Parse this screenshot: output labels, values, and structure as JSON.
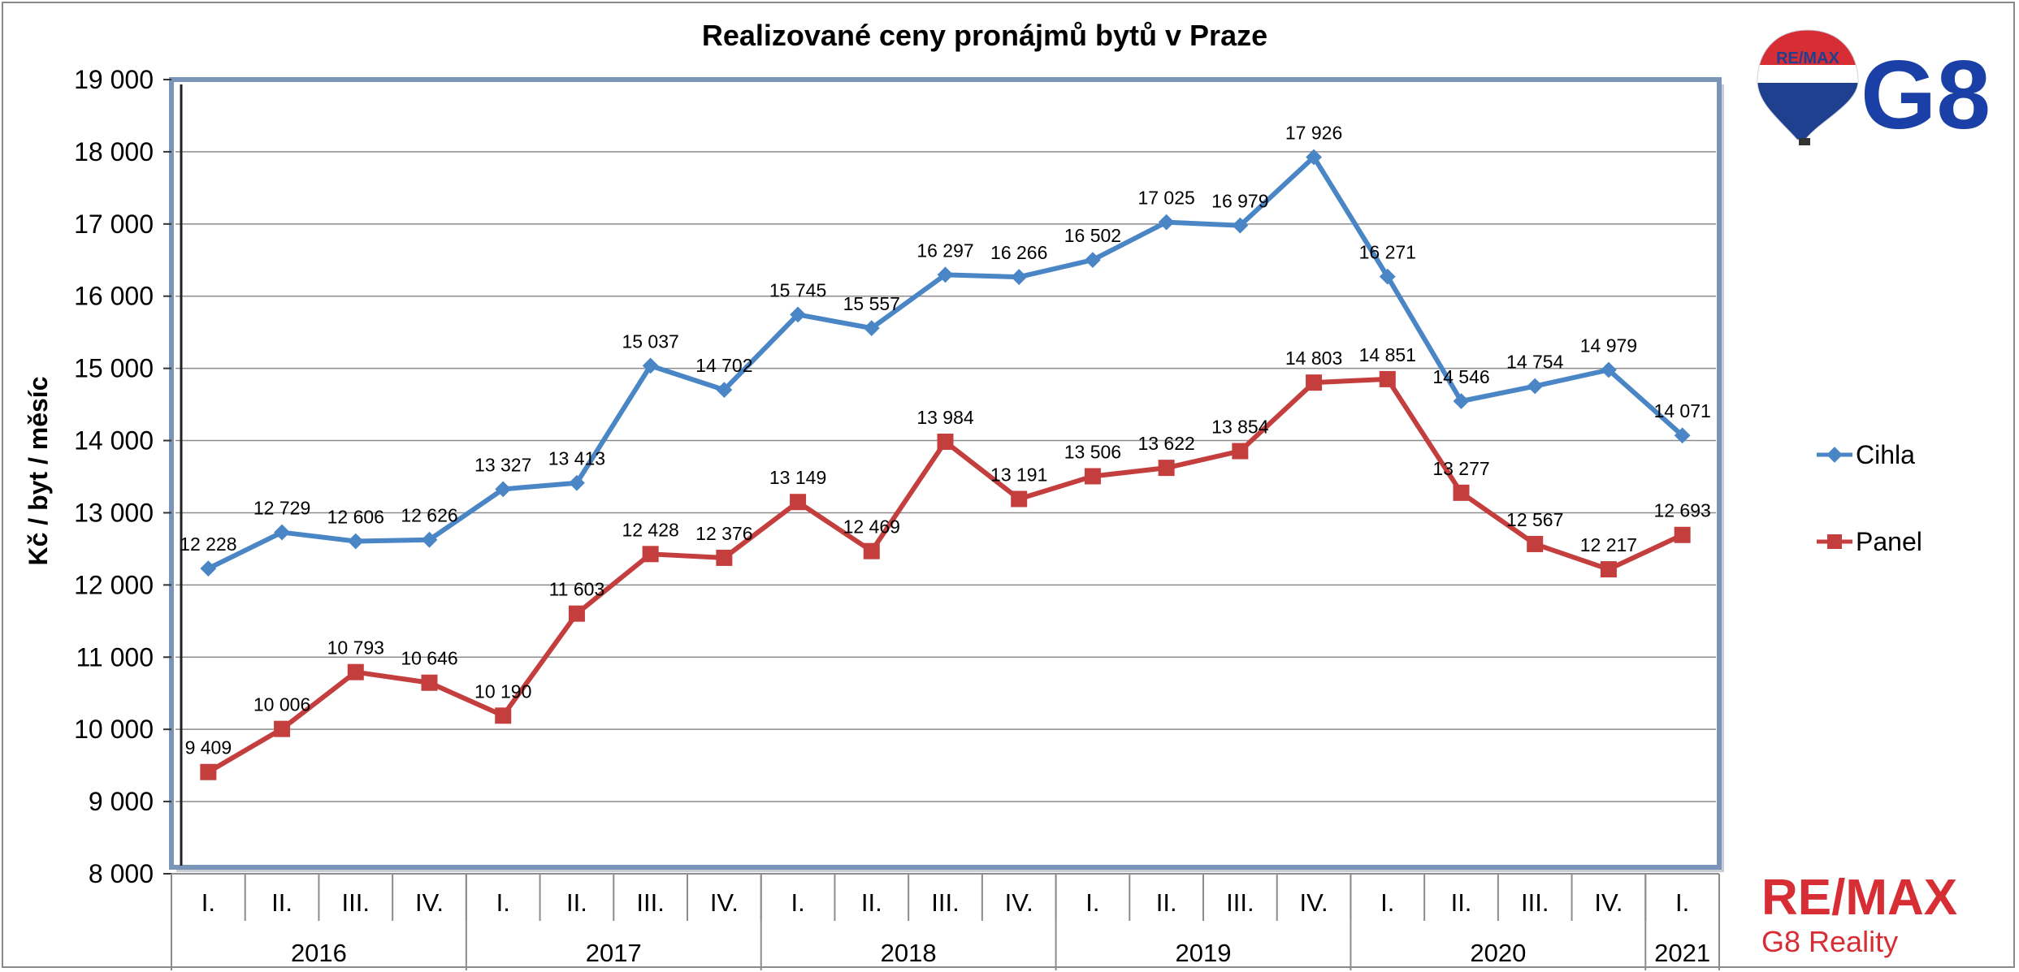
{
  "chart_data": {
    "type": "line",
    "title": "Realizované ceny pronájmů bytů v Praze",
    "ylabel": "Kč / byt / měsíc",
    "xlabel": "",
    "ylim": [
      8000,
      19000
    ],
    "ytick_step": 1000,
    "yticks": [
      "8 000",
      "9 000",
      "10 000",
      "11 000",
      "12 000",
      "13 000",
      "14 000",
      "15 000",
      "16 000",
      "17 000",
      "18 000",
      "19 000"
    ],
    "grid": true,
    "legend_position": "right",
    "categories": [
      "I.",
      "II.",
      "III.",
      "IV.",
      "I.",
      "II.",
      "III.",
      "IV.",
      "I.",
      "II.",
      "III.",
      "IV.",
      "I.",
      "II.",
      "III.",
      "IV.",
      "I.",
      "II.",
      "III.",
      "IV.",
      "I."
    ],
    "years": [
      {
        "label": "2016",
        "quarters": 4
      },
      {
        "label": "2017",
        "quarters": 4
      },
      {
        "label": "2018",
        "quarters": 4
      },
      {
        "label": "2019",
        "quarters": 4
      },
      {
        "label": "2020",
        "quarters": 4
      },
      {
        "label": "2021",
        "quarters": 1
      }
    ],
    "series": [
      {
        "name": "Cihla",
        "color": "#4a86c5",
        "marker": "diamond",
        "values": [
          12228,
          12729,
          12606,
          12626,
          13327,
          13413,
          15037,
          14702,
          15745,
          15557,
          16297,
          16266,
          16502,
          17025,
          16979,
          17926,
          16271,
          14546,
          14754,
          14979,
          14071
        ],
        "labels": [
          "12 228",
          "12 729",
          "12 606",
          "12 626",
          "13 327",
          "13 413",
          "15 037",
          "14 702",
          "15 745",
          "15 557",
          "16 297",
          "16 266",
          "16 502",
          "17 025",
          "16 979",
          "17 926",
          "16 271",
          "14 546",
          "14 754",
          "14 979",
          "14 071"
        ]
      },
      {
        "name": "Panel",
        "color": "#c43e3e",
        "marker": "square",
        "values": [
          9409,
          10006,
          10793,
          10646,
          10190,
          11603,
          12428,
          12376,
          13149,
          12469,
          13984,
          13191,
          13506,
          13622,
          13854,
          14803,
          14851,
          13277,
          12567,
          12217,
          12693
        ],
        "labels": [
          "9 409",
          "10 006",
          "10 793",
          "10 646",
          "10 190",
          "11 603",
          "12 428",
          "12 376",
          "13 149",
          "12 469",
          "13 984",
          "13 191",
          "13 506",
          "13 622",
          "13 854",
          "14 803",
          "14 851",
          "13 277",
          "12 567",
          "12 217",
          "12 693"
        ]
      }
    ]
  },
  "logos": {
    "balloon_text": "RE/MAX",
    "g8_text": "G8",
    "remax_text": "RE/MAX",
    "remax_sub": "G8 Reality",
    "brand_red": "#d72d35",
    "brand_blue": "#1a3fa6"
  }
}
